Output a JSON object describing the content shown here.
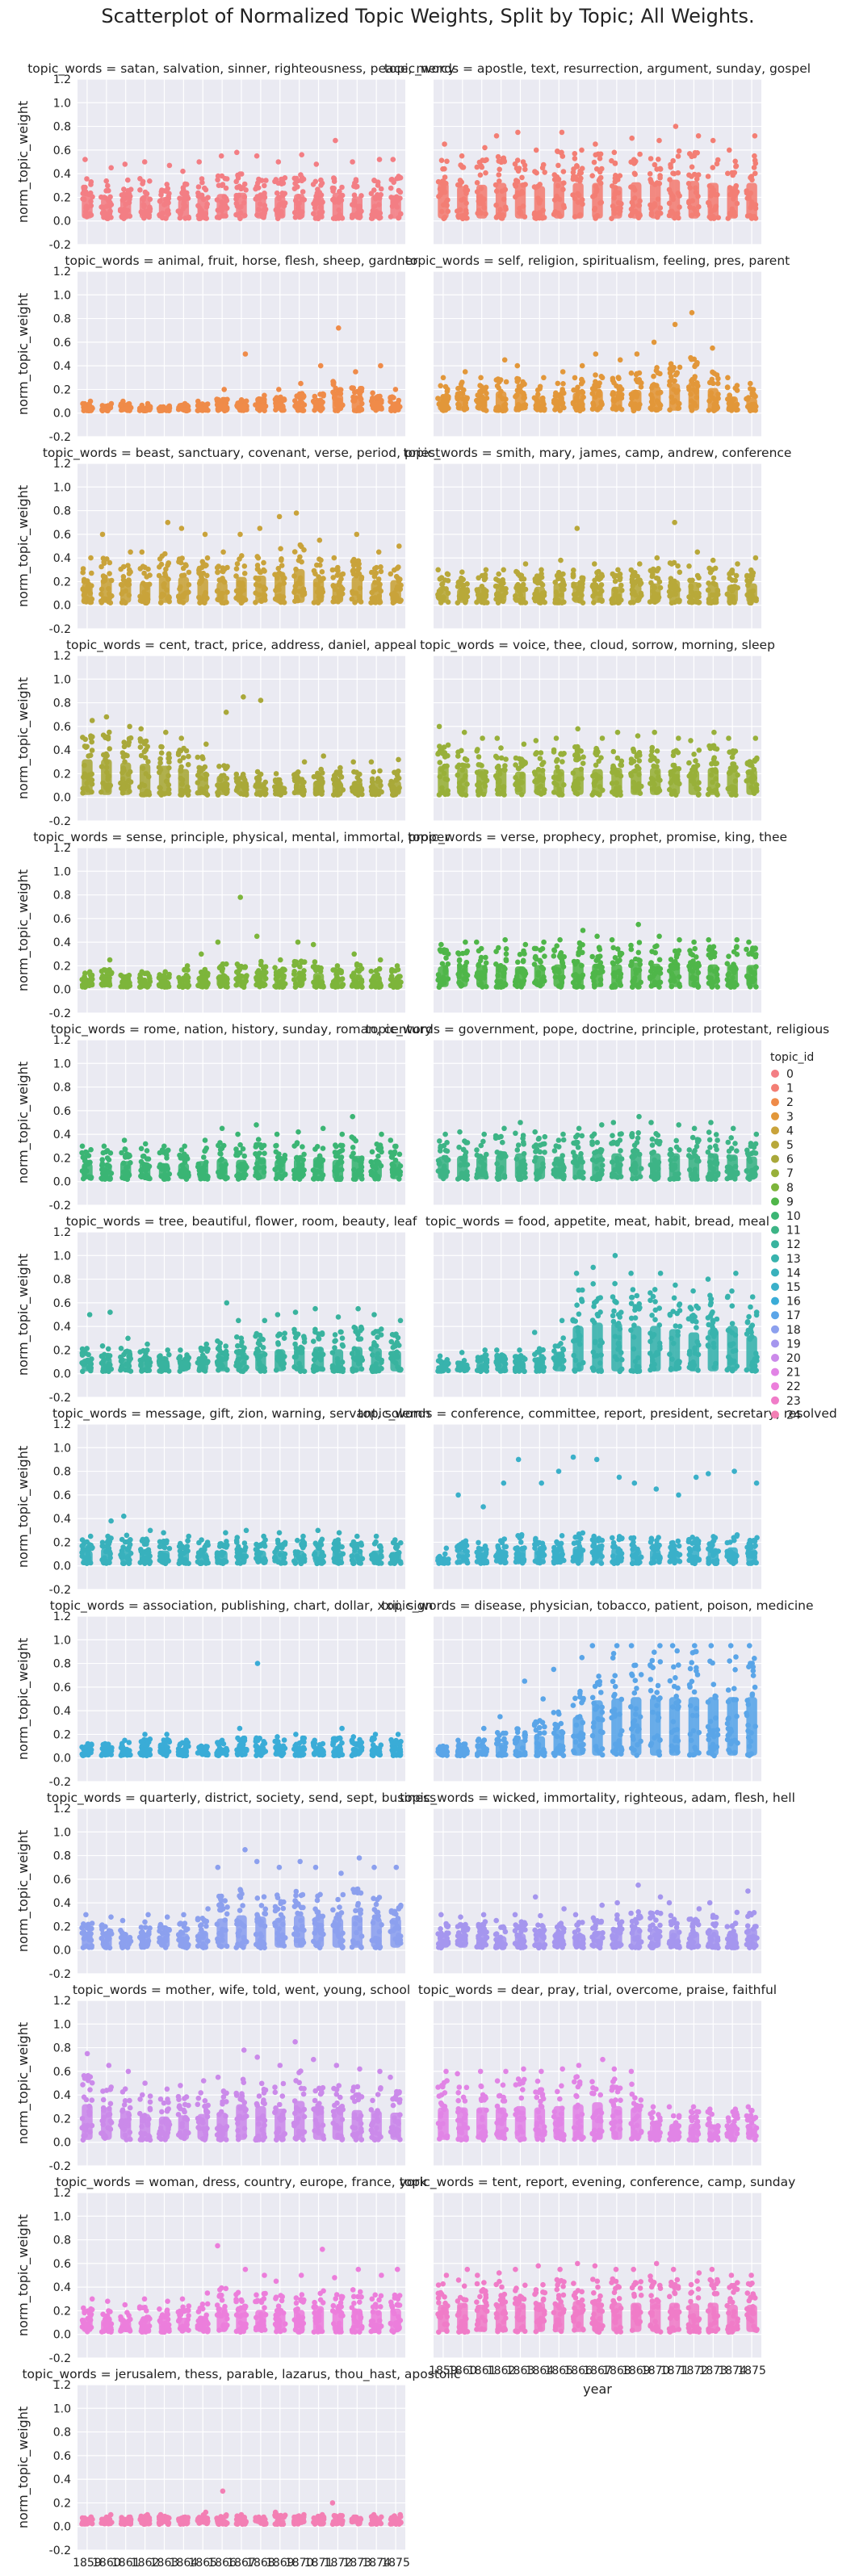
{
  "chart_data": {
    "type": "scatter",
    "title": "Scatterplot of Normalized Topic Weights, Split by Topic; All Weights.",
    "xlabel": "year",
    "ylabel": "norm_topic_weight",
    "years": [
      "1859",
      "1860",
      "1861",
      "1862",
      "1863",
      "1864",
      "1865",
      "1866",
      "1867",
      "1868",
      "1869",
      "1870",
      "1871",
      "1872",
      "1873",
      "1874",
      "1875"
    ],
    "ylim": [
      -0.2,
      1.2
    ],
    "yticks": [
      "-0.2",
      "0.0",
      "0.2",
      "0.4",
      "0.6",
      "0.8",
      "1.0",
      "1.2"
    ],
    "grid": true,
    "legend": {
      "title": "topic_id",
      "placement": "right"
    },
    "panels": [
      {
        "topic_id": 0,
        "title": "topic_words = satan, salvation, sinner, righteousness, peace, mercy",
        "color": "#f37e84",
        "max": [
          0.52,
          0.45,
          0.48,
          0.5,
          0.47,
          0.42,
          0.5,
          0.55,
          0.58,
          0.55,
          0.5,
          0.56,
          0.48,
          0.68,
          0.5,
          0.52,
          0.52
        ],
        "spread": [
          0.35,
          0.32,
          0.34,
          0.35,
          0.33,
          0.3,
          0.34,
          0.38,
          0.4,
          0.38,
          0.35,
          0.38,
          0.34,
          0.4,
          0.34,
          0.36,
          0.36
        ]
      },
      {
        "topic_id": 1,
        "title": "topic_words = apostle, text, resurrection, argument, sunday, gospel",
        "color": "#f37e74",
        "max": [
          0.65,
          0.55,
          0.62,
          0.72,
          0.75,
          0.6,
          0.75,
          0.6,
          0.65,
          0.58,
          0.7,
          0.68,
          0.8,
          0.72,
          0.68,
          0.6,
          0.72
        ],
        "spread": [
          0.55,
          0.5,
          0.52,
          0.55,
          0.55,
          0.5,
          0.58,
          0.55,
          0.55,
          0.5,
          0.56,
          0.55,
          0.6,
          0.58,
          0.55,
          0.5,
          0.55
        ]
      },
      {
        "topic_id": 2,
        "title": "topic_words = animal, fruit, horse, flesh, sheep, gardner",
        "color": "#ef8b49",
        "max": [
          0.1,
          0.08,
          0.1,
          0.08,
          0.06,
          0.08,
          0.1,
          0.2,
          0.5,
          0.15,
          0.2,
          0.25,
          0.4,
          0.72,
          0.35,
          0.4,
          0.2
        ],
        "spread": [
          0.06,
          0.05,
          0.06,
          0.05,
          0.04,
          0.05,
          0.06,
          0.1,
          0.1,
          0.1,
          0.12,
          0.15,
          0.15,
          0.25,
          0.2,
          0.15,
          0.12
        ]
      },
      {
        "topic_id": 3,
        "title": "topic_words = self, religion, spiritualism, feeling, pres, parent",
        "color": "#e2973a",
        "max": [
          0.3,
          0.35,
          0.3,
          0.45,
          0.4,
          0.3,
          0.35,
          0.4,
          0.5,
          0.45,
          0.5,
          0.6,
          0.75,
          0.85,
          0.55,
          0.3,
          0.25
        ],
        "spread": [
          0.22,
          0.25,
          0.22,
          0.3,
          0.28,
          0.22,
          0.25,
          0.28,
          0.32,
          0.3,
          0.32,
          0.38,
          0.42,
          0.45,
          0.35,
          0.22,
          0.2
        ]
      },
      {
        "topic_id": 4,
        "title": "topic_words = beast, sanctuary, covenant, verse, period, priest",
        "color": "#c9a33b",
        "max": [
          0.4,
          0.6,
          0.45,
          0.45,
          0.7,
          0.65,
          0.6,
          0.45,
          0.6,
          0.65,
          0.75,
          0.78,
          0.55,
          0.4,
          0.6,
          0.45,
          0.5
        ],
        "spread": [
          0.3,
          0.38,
          0.32,
          0.32,
          0.42,
          0.4,
          0.38,
          0.32,
          0.4,
          0.42,
          0.48,
          0.52,
          0.38,
          0.3,
          0.4,
          0.32,
          0.35
        ]
      },
      {
        "topic_id": 5,
        "title": "topic_words = smith, mary, james, camp, andrew, conference",
        "color": "#b8a83a",
        "max": [
          0.3,
          0.28,
          0.3,
          0.3,
          0.35,
          0.3,
          0.38,
          0.65,
          0.35,
          0.3,
          0.35,
          0.4,
          0.7,
          0.45,
          0.38,
          0.35,
          0.4
        ],
        "spread": [
          0.25,
          0.22,
          0.25,
          0.25,
          0.28,
          0.25,
          0.3,
          0.32,
          0.28,
          0.25,
          0.28,
          0.3,
          0.35,
          0.32,
          0.3,
          0.28,
          0.3
        ]
      },
      {
        "topic_id": 6,
        "title": "topic_words = cent, tract, price, address, daniel, appeal",
        "color": "#a9a83a",
        "max": [
          0.65,
          0.68,
          0.6,
          0.58,
          0.55,
          0.5,
          0.45,
          0.72,
          0.85,
          0.82,
          0.2,
          0.3,
          0.35,
          0.25,
          0.3,
          0.3,
          0.32
        ],
        "spread": [
          0.55,
          0.55,
          0.5,
          0.48,
          0.45,
          0.4,
          0.35,
          0.3,
          0.2,
          0.2,
          0.15,
          0.2,
          0.22,
          0.2,
          0.22,
          0.22,
          0.22
        ]
      },
      {
        "topic_id": 7,
        "title": "topic_words = voice, thee, cloud, sorrow, morning, sleep",
        "color": "#98b03a",
        "max": [
          0.6,
          0.55,
          0.5,
          0.5,
          0.45,
          0.48,
          0.5,
          0.58,
          0.5,
          0.55,
          0.52,
          0.55,
          0.5,
          0.48,
          0.55,
          0.5,
          0.5
        ],
        "spread": [
          0.45,
          0.42,
          0.4,
          0.4,
          0.36,
          0.38,
          0.4,
          0.42,
          0.4,
          0.42,
          0.4,
          0.42,
          0.4,
          0.38,
          0.42,
          0.4,
          0.4
        ]
      },
      {
        "topic_id": 8,
        "title": "topic_words = sense, principle, physical, mental, immortal, proper",
        "color": "#7db53b",
        "max": [
          0.15,
          0.25,
          0.12,
          0.15,
          0.15,
          0.2,
          0.3,
          0.4,
          0.78,
          0.45,
          0.25,
          0.4,
          0.38,
          0.2,
          0.3,
          0.25,
          0.2
        ],
        "spread": [
          0.12,
          0.15,
          0.1,
          0.12,
          0.12,
          0.15,
          0.18,
          0.2,
          0.2,
          0.22,
          0.18,
          0.22,
          0.22,
          0.15,
          0.2,
          0.18,
          0.15
        ]
      },
      {
        "topic_id": 9,
        "title": "topic_words = verse, prophecy, prophet, promise, king, thee",
        "color": "#4fb649",
        "max": [
          0.38,
          0.4,
          0.4,
          0.42,
          0.38,
          0.4,
          0.42,
          0.5,
          0.45,
          0.42,
          0.55,
          0.45,
          0.42,
          0.4,
          0.42,
          0.42,
          0.4
        ],
        "spread": [
          0.32,
          0.34,
          0.34,
          0.35,
          0.32,
          0.34,
          0.35,
          0.38,
          0.36,
          0.35,
          0.38,
          0.36,
          0.35,
          0.34,
          0.35,
          0.35,
          0.34
        ]
      },
      {
        "topic_id": 10,
        "title": "topic_words = rome, nation, history, sunday, roman, century",
        "color": "#3bb574",
        "max": [
          0.3,
          0.3,
          0.35,
          0.32,
          0.3,
          0.3,
          0.35,
          0.45,
          0.4,
          0.48,
          0.4,
          0.42,
          0.45,
          0.4,
          0.55,
          0.4,
          0.35
        ],
        "spread": [
          0.25,
          0.25,
          0.28,
          0.26,
          0.25,
          0.25,
          0.28,
          0.32,
          0.3,
          0.34,
          0.3,
          0.32,
          0.34,
          0.3,
          0.36,
          0.3,
          0.28
        ]
      },
      {
        "topic_id": 11,
        "title": "topic_words = government, pope, doctrine, principle, protestant, religious",
        "color": "#3db486",
        "max": [
          0.4,
          0.42,
          0.4,
          0.45,
          0.5,
          0.42,
          0.4,
          0.45,
          0.48,
          0.5,
          0.55,
          0.5,
          0.48,
          0.45,
          0.5,
          0.45,
          0.4
        ],
        "spread": [
          0.35,
          0.36,
          0.35,
          0.38,
          0.4,
          0.36,
          0.35,
          0.38,
          0.4,
          0.4,
          0.42,
          0.4,
          0.4,
          0.38,
          0.4,
          0.38,
          0.35
        ]
      },
      {
        "topic_id": 12,
        "title": "topic_words = tree, beautiful, flower, room, beauty, leaf",
        "color": "#39b39e",
        "max": [
          0.5,
          0.52,
          0.3,
          0.25,
          0.2,
          0.2,
          0.25,
          0.6,
          0.45,
          0.45,
          0.5,
          0.52,
          0.55,
          0.48,
          0.55,
          0.5,
          0.45
        ],
        "spread": [
          0.2,
          0.22,
          0.2,
          0.18,
          0.16,
          0.16,
          0.2,
          0.3,
          0.3,
          0.32,
          0.34,
          0.36,
          0.38,
          0.34,
          0.38,
          0.36,
          0.32
        ]
      },
      {
        "topic_id": 13,
        "title": "topic_words = food, appetite, meat, habit, bread, meal",
        "color": "#38b3ad",
        "max": [
          0.15,
          0.18,
          0.2,
          0.2,
          0.2,
          0.35,
          0.45,
          0.85,
          0.9,
          1.0,
          0.85,
          0.85,
          0.75,
          0.7,
          0.8,
          0.85,
          0.65
        ],
        "spread": [
          0.1,
          0.12,
          0.14,
          0.14,
          0.14,
          0.2,
          0.3,
          0.7,
          0.75,
          0.75,
          0.7,
          0.7,
          0.65,
          0.6,
          0.65,
          0.7,
          0.55
        ]
      },
      {
        "topic_id": 14,
        "title": "topic_words = message, gift, zion, warning, servant, solemn",
        "color": "#39b1bc",
        "max": [
          0.25,
          0.38,
          0.42,
          0.3,
          0.28,
          0.25,
          0.22,
          0.28,
          0.3,
          0.25,
          0.28,
          0.25,
          0.3,
          0.28,
          0.25,
          0.25,
          0.22
        ],
        "spread": [
          0.2,
          0.24,
          0.26,
          0.22,
          0.2,
          0.2,
          0.18,
          0.2,
          0.22,
          0.2,
          0.2,
          0.2,
          0.22,
          0.2,
          0.2,
          0.2,
          0.18
        ]
      },
      {
        "topic_id": 15,
        "title": "topic_words = conference, committee, report, president, secretary, resolved",
        "color": "#3bb0c9",
        "max": [
          0.15,
          0.6,
          0.5,
          0.7,
          0.9,
          0.7,
          0.8,
          0.92,
          0.9,
          0.75,
          0.7,
          0.65,
          0.6,
          0.75,
          0.78,
          0.8,
          0.7
        ],
        "spread": [
          0.1,
          0.2,
          0.18,
          0.22,
          0.25,
          0.22,
          0.24,
          0.26,
          0.26,
          0.24,
          0.22,
          0.22,
          0.2,
          0.24,
          0.24,
          0.25,
          0.22
        ]
      },
      {
        "topic_id": 16,
        "title": "topic_words = association, publishing, chart, dollar, xxii, sign",
        "color": "#3aacd7",
        "max": [
          0.12,
          0.12,
          0.15,
          0.2,
          0.2,
          0.15,
          0.1,
          0.15,
          0.25,
          0.8,
          0.18,
          0.2,
          0.15,
          0.25,
          0.18,
          0.2,
          0.2
        ],
        "spread": [
          0.1,
          0.1,
          0.12,
          0.14,
          0.14,
          0.12,
          0.08,
          0.12,
          0.15,
          0.15,
          0.14,
          0.15,
          0.12,
          0.15,
          0.14,
          0.15,
          0.15
        ]
      },
      {
        "topic_id": 17,
        "title": "topic_words = disease, physician, tobacco, patient, poison, medicine",
        "color": "#5aa5e8",
        "max": [
          0.1,
          0.15,
          0.25,
          0.35,
          0.65,
          0.5,
          0.75,
          0.85,
          0.95,
          0.95,
          0.95,
          0.95,
          0.95,
          0.95,
          0.95,
          0.95,
          0.95
        ],
        "spread": [
          0.08,
          0.1,
          0.15,
          0.2,
          0.25,
          0.3,
          0.4,
          0.6,
          0.85,
          0.88,
          0.9,
          0.9,
          0.9,
          0.9,
          0.9,
          0.9,
          0.9
        ]
      },
      {
        "topic_id": 18,
        "title": "topic_words = quarterly, district, society, send, sept, business",
        "color": "#8ca0ee",
        "max": [
          0.3,
          0.28,
          0.25,
          0.3,
          0.28,
          0.3,
          0.35,
          0.7,
          0.85,
          0.75,
          0.7,
          0.75,
          0.7,
          0.65,
          0.78,
          0.7,
          0.7
        ],
        "spread": [
          0.22,
          0.2,
          0.18,
          0.22,
          0.2,
          0.22,
          0.26,
          0.45,
          0.5,
          0.48,
          0.46,
          0.5,
          0.48,
          0.45,
          0.5,
          0.46,
          0.46
        ]
      },
      {
        "topic_id": 19,
        "title": "topic_words = wicked, immortality, righteous, adam, flesh, hell",
        "color": "#a596ee",
        "max": [
          0.3,
          0.28,
          0.3,
          0.25,
          0.3,
          0.45,
          0.35,
          0.3,
          0.38,
          0.4,
          0.55,
          0.45,
          0.4,
          0.35,
          0.4,
          0.32,
          0.5
        ],
        "spread": [
          0.22,
          0.2,
          0.22,
          0.18,
          0.22,
          0.28,
          0.25,
          0.22,
          0.26,
          0.28,
          0.32,
          0.3,
          0.28,
          0.25,
          0.28,
          0.24,
          0.3
        ]
      },
      {
        "topic_id": 20,
        "title": "topic_words = mother, wife, told, went, young, school",
        "color": "#cb8aea",
        "max": [
          0.75,
          0.65,
          0.6,
          0.5,
          0.45,
          0.48,
          0.52,
          0.55,
          0.78,
          0.72,
          0.65,
          0.85,
          0.7,
          0.65,
          0.62,
          0.6,
          0.55
        ],
        "spread": [
          0.55,
          0.5,
          0.45,
          0.4,
          0.36,
          0.38,
          0.4,
          0.42,
          0.55,
          0.52,
          0.48,
          0.6,
          0.5,
          0.48,
          0.46,
          0.45,
          0.42
        ]
      },
      {
        "topic_id": 21,
        "title": "topic_words = dear, pray, trial, overcome, praise, faithful",
        "color": "#e184e5",
        "max": [
          0.6,
          0.58,
          0.6,
          0.6,
          0.62,
          0.6,
          0.62,
          0.65,
          0.7,
          0.62,
          0.6,
          0.3,
          0.3,
          0.3,
          0.28,
          0.28,
          0.3
        ],
        "spread": [
          0.5,
          0.5,
          0.5,
          0.5,
          0.52,
          0.5,
          0.52,
          0.55,
          0.58,
          0.52,
          0.5,
          0.25,
          0.25,
          0.25,
          0.24,
          0.24,
          0.25
        ]
      },
      {
        "topic_id": 22,
        "title": "topic_words = woman, dress, country, europe, france, york",
        "color": "#ec7edb",
        "max": [
          0.3,
          0.28,
          0.25,
          0.3,
          0.28,
          0.3,
          0.35,
          0.75,
          0.55,
          0.5,
          0.45,
          0.5,
          0.72,
          0.48,
          0.55,
          0.5,
          0.55
        ],
        "spread": [
          0.22,
          0.2,
          0.18,
          0.22,
          0.2,
          0.22,
          0.25,
          0.38,
          0.35,
          0.34,
          0.32,
          0.34,
          0.4,
          0.34,
          0.36,
          0.34,
          0.36
        ]
      },
      {
        "topic_id": 23,
        "title": "topic_words = tent, report, evening, conference, camp, sunday",
        "color": "#f07cc8",
        "max": [
          0.5,
          0.55,
          0.5,
          0.52,
          0.55,
          0.58,
          0.55,
          0.6,
          0.58,
          0.55,
          0.55,
          0.6,
          0.55,
          0.52,
          0.55,
          0.5,
          0.5
        ],
        "spread": [
          0.42,
          0.45,
          0.42,
          0.44,
          0.45,
          0.46,
          0.45,
          0.48,
          0.46,
          0.45,
          0.45,
          0.48,
          0.45,
          0.44,
          0.45,
          0.42,
          0.42
        ]
      },
      {
        "topic_id": 24,
        "title": "topic_words = jerusalem, thess, parable, lazarus, thou_hast, apostolic",
        "color": "#f37fb4",
        "max": [
          0.08,
          0.1,
          0.08,
          0.1,
          0.1,
          0.08,
          0.12,
          0.3,
          0.1,
          0.08,
          0.12,
          0.1,
          0.1,
          0.2,
          0.08,
          0.1,
          0.1
        ],
        "spread": [
          0.06,
          0.07,
          0.06,
          0.07,
          0.07,
          0.06,
          0.08,
          0.08,
          0.07,
          0.06,
          0.08,
          0.07,
          0.07,
          0.08,
          0.06,
          0.07,
          0.07
        ]
      }
    ]
  }
}
